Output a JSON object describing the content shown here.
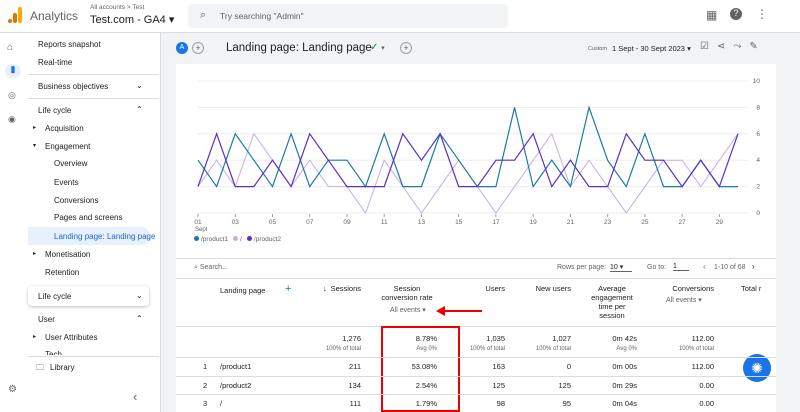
{
  "topbar": {
    "product": "Analytics",
    "breadcrumb": "All accounts > Test",
    "property": "Test.com - GA4",
    "search_placeholder": "Try searching \"Admin\""
  },
  "nav": {
    "items": [
      "Reports snapshot",
      "Real-time"
    ],
    "business": "Business objectives",
    "lifecycle": "Life cycle",
    "lifecycle_items": [
      "Acquisition",
      "Engagement"
    ],
    "engagement_items": [
      "Overview",
      "Events",
      "Conversions",
      "Pages and screens",
      "Landing page: Landing page"
    ],
    "lifecycle_more": [
      "Monetisation",
      "Retention"
    ],
    "lifecycle2": "Life cycle",
    "user": "User",
    "user_items": [
      "User Attributes",
      "Tech"
    ],
    "library": "Library"
  },
  "header": {
    "avatar": "A",
    "title": "Landing page: Landing page",
    "date_kind": "Custom",
    "date_range": "1 Sept - 30 Sept 2023"
  },
  "chart_data": {
    "type": "line",
    "x": [
      1,
      2,
      3,
      4,
      5,
      6,
      7,
      8,
      9,
      10,
      11,
      12,
      13,
      14,
      15,
      16,
      17,
      18,
      19,
      20,
      21,
      22,
      23,
      24,
      25,
      26,
      27,
      28,
      29,
      30
    ],
    "xticks": [
      {
        "value": 1,
        "label": "01"
      },
      {
        "value": 3,
        "label": "03"
      },
      {
        "value": 5,
        "label": "05"
      },
      {
        "value": 7,
        "label": "07"
      },
      {
        "value": 9,
        "label": "09"
      },
      11,
      13,
      15,
      17,
      19,
      21,
      23,
      25,
      27,
      29
    ],
    "x_sublabel": "Sept",
    "ylim": [
      0,
      10
    ],
    "yticks": [
      0,
      2,
      4,
      6,
      8,
      10
    ],
    "series": [
      {
        "name": "/product1",
        "color": "#1b7aa6",
        "values": [
          4,
          2,
          6,
          4,
          2,
          6,
          2,
          4,
          4,
          2,
          6,
          2,
          2,
          6,
          4,
          2,
          2,
          8,
          2,
          4,
          2,
          8,
          4,
          2,
          6,
          2,
          2,
          4,
          2,
          2
        ]
      },
      {
        "name": "/",
        "color": "#c7aee6",
        "values": [
          2,
          4,
          2,
          6,
          4,
          2,
          4,
          2,
          2,
          0,
          4,
          2,
          0,
          2,
          4,
          2,
          0,
          2,
          4,
          6,
          2,
          4,
          2,
          0,
          2,
          4,
          4,
          2,
          4,
          6
        ]
      },
      {
        "name": "/product2",
        "color": "#5a2fc4",
        "values": [
          2,
          6,
          2,
          2,
          4,
          2,
          6,
          4,
          2,
          2,
          2,
          6,
          4,
          6,
          2,
          2,
          4,
          4,
          6,
          2,
          4,
          2,
          2,
          6,
          4,
          4,
          2,
          4,
          2,
          6
        ]
      }
    ]
  },
  "table": {
    "search": "Search...",
    "rows_per_page_label": "Rows per page:",
    "rows_per_page": "10",
    "goto_label": "Go to:",
    "goto": "1",
    "pagination": "1-10 of 68",
    "dimension": "Landing page",
    "columns": [
      "Sessions",
      "Session conversion rate",
      "Users",
      "New users",
      "Average engagement time per session",
      "Conversions",
      "Total r"
    ],
    "column_filter": "All events",
    "totals": [
      [
        "1,276",
        "100% of total"
      ],
      [
        "8.78%",
        "Avg 0%"
      ],
      [
        "1,035",
        "100% of total"
      ],
      [
        "1,027",
        "100% of total"
      ],
      [
        "0m 42s",
        "Avg 0%"
      ],
      [
        "112.00",
        "100% of total"
      ]
    ],
    "rows": [
      [
        "1",
        "/product1",
        "211",
        "53.08%",
        "163",
        "0",
        "0m 00s",
        "112.00"
      ],
      [
        "2",
        "/product2",
        "134",
        "2.54%",
        "125",
        "125",
        "0m 29s",
        "0.00"
      ],
      [
        "3",
        "/",
        "111",
        "1.79%",
        "98",
        "95",
        "0m 04s",
        "0.00"
      ]
    ]
  }
}
